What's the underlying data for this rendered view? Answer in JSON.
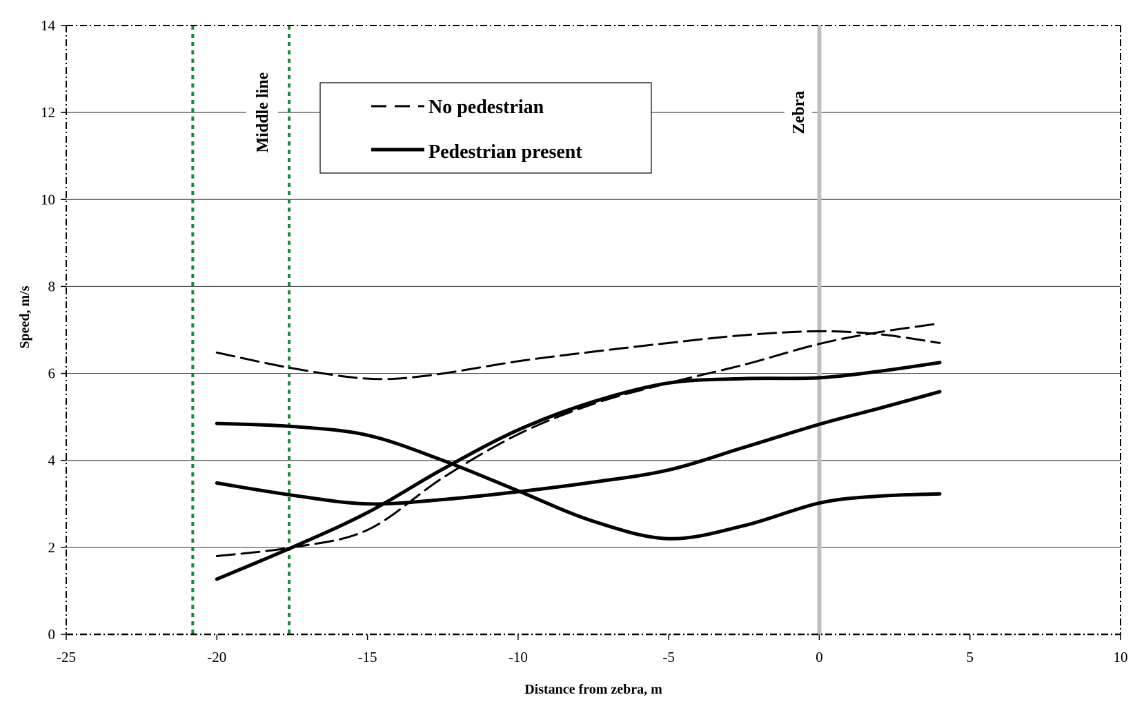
{
  "chart_data": {
    "type": "line",
    "xlabel": "Distance from zebra, m",
    "ylabel": "Speed, m/s",
    "xlim": [
      -25,
      10
    ],
    "ylim": [
      0,
      14
    ],
    "x_ticks": [
      -25,
      -20,
      -15,
      -10,
      -5,
      0,
      5,
      10
    ],
    "y_ticks": [
      0,
      2,
      4,
      6,
      8,
      10,
      12,
      14
    ],
    "grid": "horizontal",
    "legend": {
      "position": "top-center",
      "entries": [
        {
          "label": "No pedestrian",
          "style": "dashed"
        },
        {
          "label": "Pedestrian present",
          "style": "solid"
        }
      ]
    },
    "annotations": [
      {
        "text": "Middle line",
        "x": -18.5,
        "y": 12,
        "orientation": "vertical"
      },
      {
        "text": "Zebra",
        "x": -0.7,
        "y": 12,
        "orientation": "vertical"
      }
    ],
    "reference_lines": [
      {
        "x": -20.8,
        "style": "dotted",
        "color": "#1a8a3a"
      },
      {
        "x": -17.6,
        "style": "dotted",
        "color": "#1a8a3a"
      },
      {
        "x": 0,
        "style": "solid",
        "color": "#c0c0c0"
      }
    ],
    "series": [
      {
        "style": "dashed",
        "x": [
          -20,
          -17.5,
          -15,
          -13,
          -10,
          -7.5,
          -5,
          -2.5,
          0,
          2,
          4
        ],
        "y": [
          6.48,
          6.12,
          5.88,
          5.95,
          6.28,
          6.5,
          6.7,
          6.88,
          6.97,
          6.9,
          6.7
        ]
      },
      {
        "style": "dashed",
        "x": [
          -20,
          -17.5,
          -15,
          -12.5,
          -10,
          -7.5,
          -5,
          -2.5,
          0,
          2,
          4
        ],
        "y": [
          1.8,
          2.0,
          2.4,
          3.6,
          4.6,
          5.3,
          5.78,
          6.2,
          6.68,
          6.95,
          7.15
        ]
      },
      {
        "style": "solid",
        "x": [
          -20,
          -17.5,
          -15,
          -12.5,
          -10,
          -7.5,
          -5,
          -2.5,
          0,
          2,
          4
        ],
        "y": [
          1.27,
          2.0,
          2.8,
          3.8,
          4.7,
          5.35,
          5.78,
          5.88,
          5.9,
          6.05,
          6.25
        ]
      },
      {
        "style": "solid",
        "x": [
          -20,
          -17.5,
          -15,
          -12.5,
          -10,
          -7.5,
          -5,
          -2.5,
          0,
          2,
          4
        ],
        "y": [
          4.85,
          4.78,
          4.58,
          4.0,
          3.3,
          2.6,
          2.2,
          2.5,
          3.02,
          3.18,
          3.23
        ]
      },
      {
        "style": "solid",
        "x": [
          -20,
          -17.5,
          -15,
          -12.5,
          -10,
          -7.5,
          -5,
          -2.5,
          0,
          2,
          4
        ],
        "y": [
          3.48,
          3.2,
          3.0,
          3.1,
          3.28,
          3.5,
          3.78,
          4.3,
          4.83,
          5.2,
          5.58
        ]
      }
    ]
  }
}
